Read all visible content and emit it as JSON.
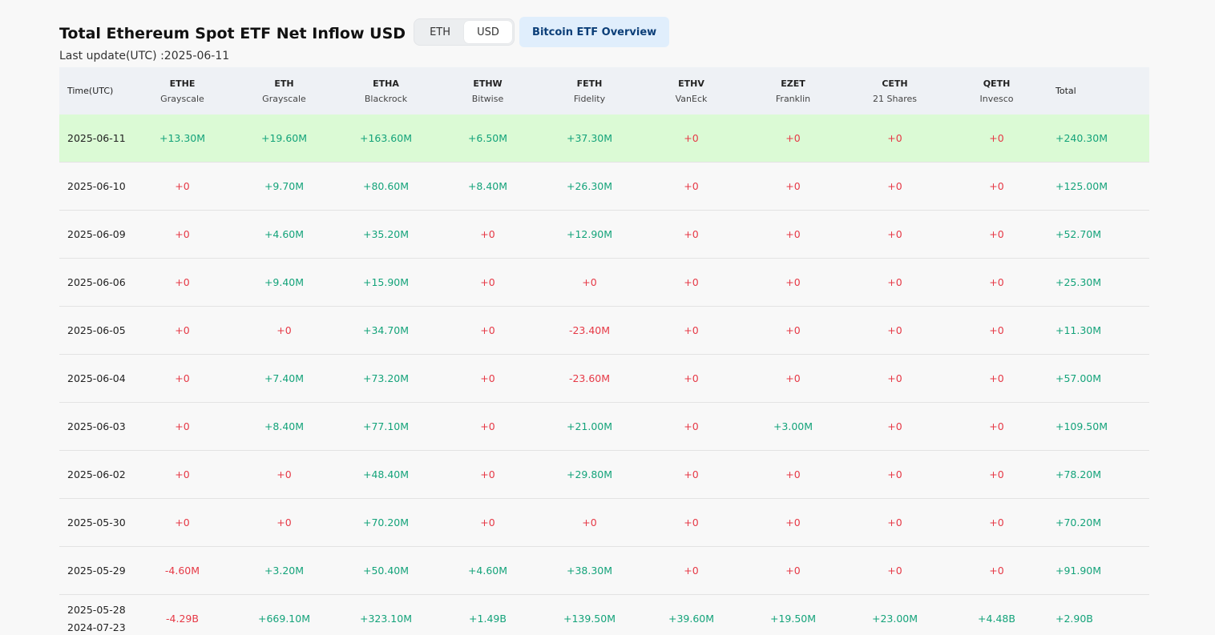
{
  "header": {
    "title": "Total Ethereum Spot ETF Net Inflow USD",
    "toggle": [
      "ETH",
      "USD"
    ],
    "active_toggle": "USD",
    "overview_button": "Bitcoin ETF Overview",
    "last_update": "Last update(UTC) :2025-06-11"
  },
  "table": {
    "columns": [
      {
        "ticker": "Time(UTC)",
        "issuer": ""
      },
      {
        "ticker": "ETHE",
        "issuer": "Grayscale"
      },
      {
        "ticker": "ETH",
        "issuer": "Grayscale"
      },
      {
        "ticker": "ETHA",
        "issuer": "Blackrock"
      },
      {
        "ticker": "ETHW",
        "issuer": "Bitwise"
      },
      {
        "ticker": "FETH",
        "issuer": "Fidelity"
      },
      {
        "ticker": "ETHV",
        "issuer": "VanEck"
      },
      {
        "ticker": "EZET",
        "issuer": "Franklin"
      },
      {
        "ticker": "CETH",
        "issuer": "21 Shares"
      },
      {
        "ticker": "QETH",
        "issuer": "Invesco"
      },
      {
        "ticker": "Total",
        "issuer": ""
      }
    ],
    "rows": [
      {
        "date": [
          "2025-06-11"
        ],
        "values": [
          "+13.30M",
          "+19.60M",
          "+163.60M",
          "+6.50M",
          "+37.30M",
          "+0",
          "+0",
          "+0",
          "+0",
          "+240.30M"
        ],
        "highlight": true
      },
      {
        "date": [
          "2025-06-10"
        ],
        "values": [
          "+0",
          "+9.70M",
          "+80.60M",
          "+8.40M",
          "+26.30M",
          "+0",
          "+0",
          "+0",
          "+0",
          "+125.00M"
        ]
      },
      {
        "date": [
          "2025-06-09"
        ],
        "values": [
          "+0",
          "+4.60M",
          "+35.20M",
          "+0",
          "+12.90M",
          "+0",
          "+0",
          "+0",
          "+0",
          "+52.70M"
        ]
      },
      {
        "date": [
          "2025-06-06"
        ],
        "values": [
          "+0",
          "+9.40M",
          "+15.90M",
          "+0",
          "+0",
          "+0",
          "+0",
          "+0",
          "+0",
          "+25.30M"
        ]
      },
      {
        "date": [
          "2025-06-05"
        ],
        "values": [
          "+0",
          "+0",
          "+34.70M",
          "+0",
          "-23.40M",
          "+0",
          "+0",
          "+0",
          "+0",
          "+11.30M"
        ]
      },
      {
        "date": [
          "2025-06-04"
        ],
        "values": [
          "+0",
          "+7.40M",
          "+73.20M",
          "+0",
          "-23.60M",
          "+0",
          "+0",
          "+0",
          "+0",
          "+57.00M"
        ]
      },
      {
        "date": [
          "2025-06-03"
        ],
        "values": [
          "+0",
          "+8.40M",
          "+77.10M",
          "+0",
          "+21.00M",
          "+0",
          "+3.00M",
          "+0",
          "+0",
          "+109.50M"
        ]
      },
      {
        "date": [
          "2025-06-02"
        ],
        "values": [
          "+0",
          "+0",
          "+48.40M",
          "+0",
          "+29.80M",
          "+0",
          "+0",
          "+0",
          "+0",
          "+78.20M"
        ]
      },
      {
        "date": [
          "2025-05-30"
        ],
        "values": [
          "+0",
          "+0",
          "+70.20M",
          "+0",
          "+0",
          "+0",
          "+0",
          "+0",
          "+0",
          "+70.20M"
        ]
      },
      {
        "date": [
          "2025-05-29"
        ],
        "values": [
          "-4.60M",
          "+3.20M",
          "+50.40M",
          "+4.60M",
          "+38.30M",
          "+0",
          "+0",
          "+0",
          "+0",
          "+91.90M"
        ]
      },
      {
        "date": [
          "2025-05-28",
          "2024-07-23"
        ],
        "values": [
          "-4.29B",
          "+669.10M",
          "+323.10M",
          "+1.49B",
          "+139.50M",
          "+39.60M",
          "+19.50M",
          "+23.00M",
          "+4.48B",
          "+2.90B"
        ]
      }
    ]
  },
  "colors": {
    "positive": "#14a37a",
    "zero_and_negative": "#e63946",
    "highlight_row": "#dbfad5",
    "header_bg": "#eef1f5",
    "overview_bg": "#e0eefc"
  }
}
